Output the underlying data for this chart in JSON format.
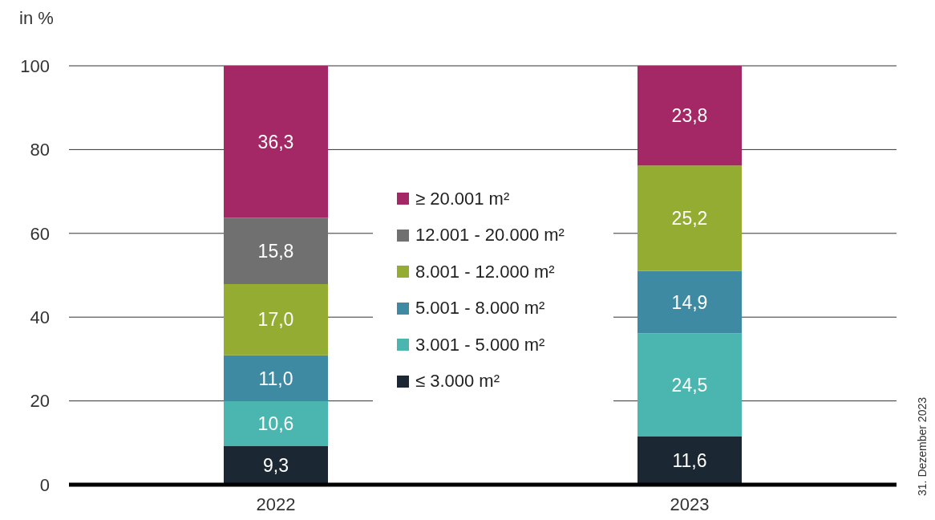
{
  "chart_data": {
    "type": "bar",
    "stacked": true,
    "ylabel": "in %",
    "categories": [
      "2022",
      "2023"
    ],
    "series": [
      {
        "name": "≤ 3.000 m²",
        "color": "#1b2833",
        "values": [
          9.3,
          11.6
        ],
        "value_labels": [
          "9,3",
          "11,6"
        ]
      },
      {
        "name": "3.001 - 5.000 m²",
        "color": "#4bb6af",
        "values": [
          10.6,
          24.5
        ],
        "value_labels": [
          "10,6",
          "24,5"
        ]
      },
      {
        "name": "5.001 - 8.000 m²",
        "color": "#3f8aa3",
        "values": [
          11.0,
          14.9
        ],
        "value_labels": [
          "11,0",
          "14,9"
        ]
      },
      {
        "name": "8.001 - 12.000 m²",
        "color": "#94ac32",
        "values": [
          17.0,
          25.2
        ],
        "value_labels": [
          "17,0",
          "25,2"
        ]
      },
      {
        "name": "12.001 - 20.000 m²",
        "color": "#707070",
        "values": [
          15.8,
          null
        ],
        "value_labels": [
          "15,8",
          null
        ]
      },
      {
        "name": "≥ 20.001 m²",
        "color": "#a32865",
        "values": [
          36.3,
          23.8
        ],
        "value_labels": [
          "36,3",
          "23,8"
        ]
      }
    ],
    "ylim": [
      0,
      100
    ],
    "yticks": [
      0,
      20,
      40,
      60,
      80,
      100
    ],
    "grid": "y",
    "legend": "center",
    "annotations": [
      "31. Dezember 2023"
    ]
  }
}
